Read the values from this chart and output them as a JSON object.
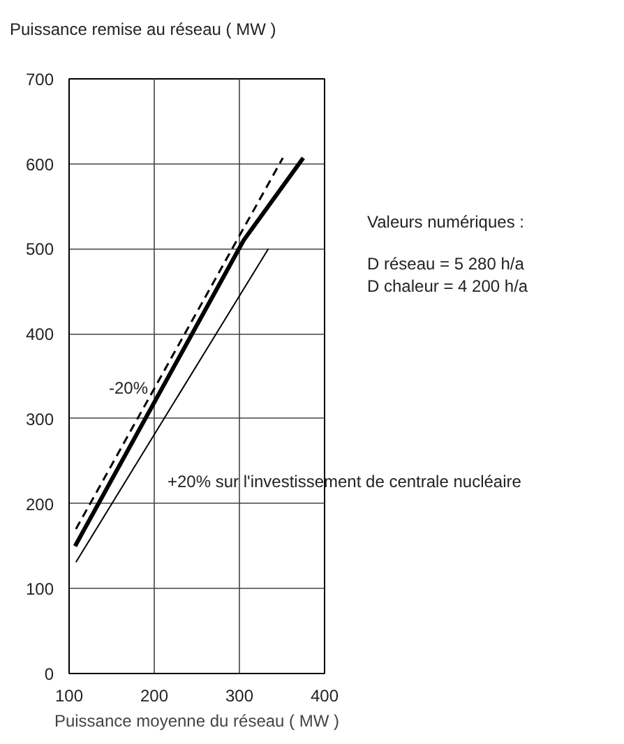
{
  "chart_data": {
    "type": "line",
    "xlabel": "Puissance moyenne du réseau ( MW )",
    "ylabel": "Puissance remise au réseau ( MW )",
    "xlim": [
      100,
      400
    ],
    "ylim": [
      0,
      700
    ],
    "xticks": [
      100,
      200,
      300,
      400
    ],
    "yticks": [
      0,
      100,
      200,
      300,
      400,
      500,
      600,
      700
    ],
    "grid": true,
    "series": [
      {
        "color": "#000000",
        "line_style": "solid",
        "x": [
          107,
          305,
          375
        ],
        "values": [
          150,
          510,
          607
        ]
      },
      {
        "color": "#000000",
        "line_style": "dashed",
        "x": [
          108,
          351
        ],
        "values": [
          170,
          607
        ]
      },
      {
        "color": "#000000",
        "line_style": "solid",
        "x": [
          108,
          334
        ],
        "values": [
          131,
          500
        ]
      }
    ],
    "annotations": [
      "-20%",
      "+20% sur l'investissement de centrale nucléaire",
      "Valeurs numériques :",
      "D réseau = 5 280 h/a",
      "D chaleur = 4 200 h/a"
    ]
  }
}
